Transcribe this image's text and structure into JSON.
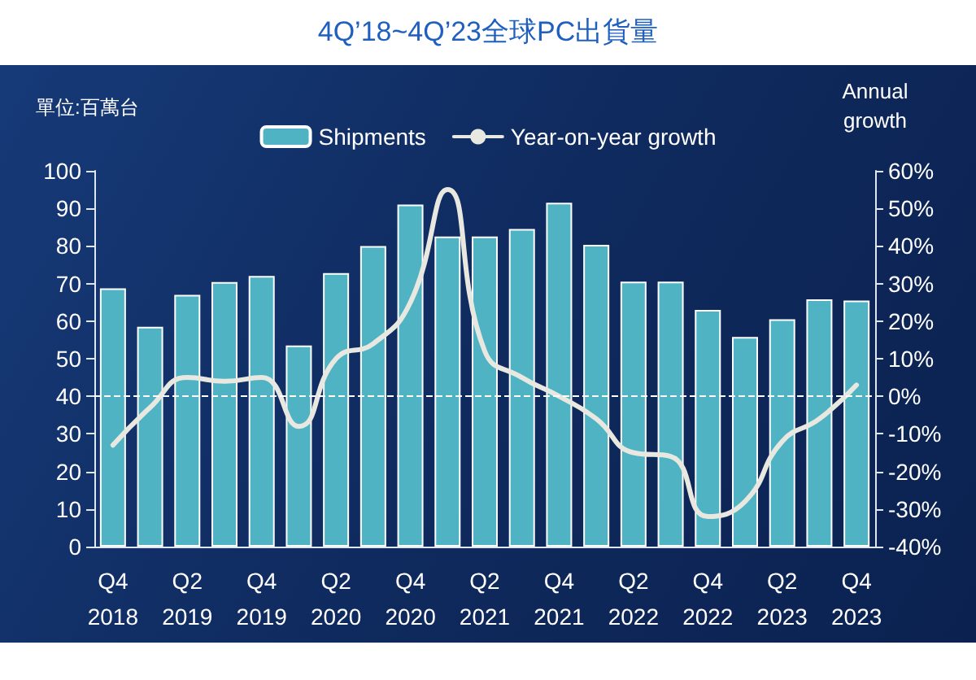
{
  "chart_data": {
    "type": "bar",
    "title": "4Q’18~4Q’23全球PC出貨量",
    "annotations": [
      "單位:百萬台"
    ],
    "y2label": "Annual\ngrowth",
    "categories": [
      "Q4\n2018",
      null,
      "Q2\n2019",
      null,
      "Q4\n2019",
      null,
      "Q2\n2020",
      null,
      "Q4\n2020",
      null,
      "Q2\n2021",
      null,
      "Q4\n2021",
      null,
      "Q2\n2022",
      null,
      "Q4\n2022",
      null,
      "Q2\n2023",
      null,
      "Q4\n2023"
    ],
    "series": [
      {
        "name": "Shipments",
        "color": "#4fb3c4",
        "values": [
          68.7,
          58.5,
          67,
          70.4,
          72,
          53.5,
          72.8,
          80,
          91,
          82.5,
          82.5,
          84.5,
          91.5,
          80.3,
          70.5,
          70.5,
          63,
          55.8,
          60.5,
          65.8,
          65.5
        ]
      },
      {
        "name": "Year-on-year growth",
        "type": "line",
        "axis": "y2",
        "color": "#e8e8e0",
        "values": [
          -13,
          -3,
          5,
          4,
          5,
          -8,
          10,
          14,
          25,
          55,
          12,
          5,
          0,
          -6,
          -15,
          -16,
          -32,
          -28,
          -12,
          -6,
          3
        ]
      }
    ],
    "ylim": [
      0,
      100
    ],
    "yticks": [
      0,
      10,
      20,
      30,
      40,
      50,
      60,
      70,
      80,
      90,
      100
    ],
    "y2lim": [
      -40,
      60
    ],
    "y2ticks": [
      {
        "value": -40,
        "label": "-40%"
      },
      {
        "value": -30,
        "label": "-30%"
      },
      {
        "value": -20,
        "label": "-20%"
      },
      {
        "value": -10,
        "label": "-10%"
      },
      {
        "value": 0,
        "label": "0%"
      },
      {
        "value": 10,
        "label": "10%"
      },
      {
        "value": 20,
        "label": "20%"
      },
      {
        "value": 30,
        "label": "30%"
      },
      {
        "value": 40,
        "label": "40%"
      },
      {
        "value": 50,
        "label": "50%"
      },
      {
        "value": 60,
        "label": "60%"
      }
    ],
    "ref_lines": [
      {
        "axis": "y2",
        "value": 0,
        "color": "#ffffff",
        "line_style": "dashed"
      }
    ],
    "legend": "top",
    "grid": false,
    "marker": "none"
  }
}
